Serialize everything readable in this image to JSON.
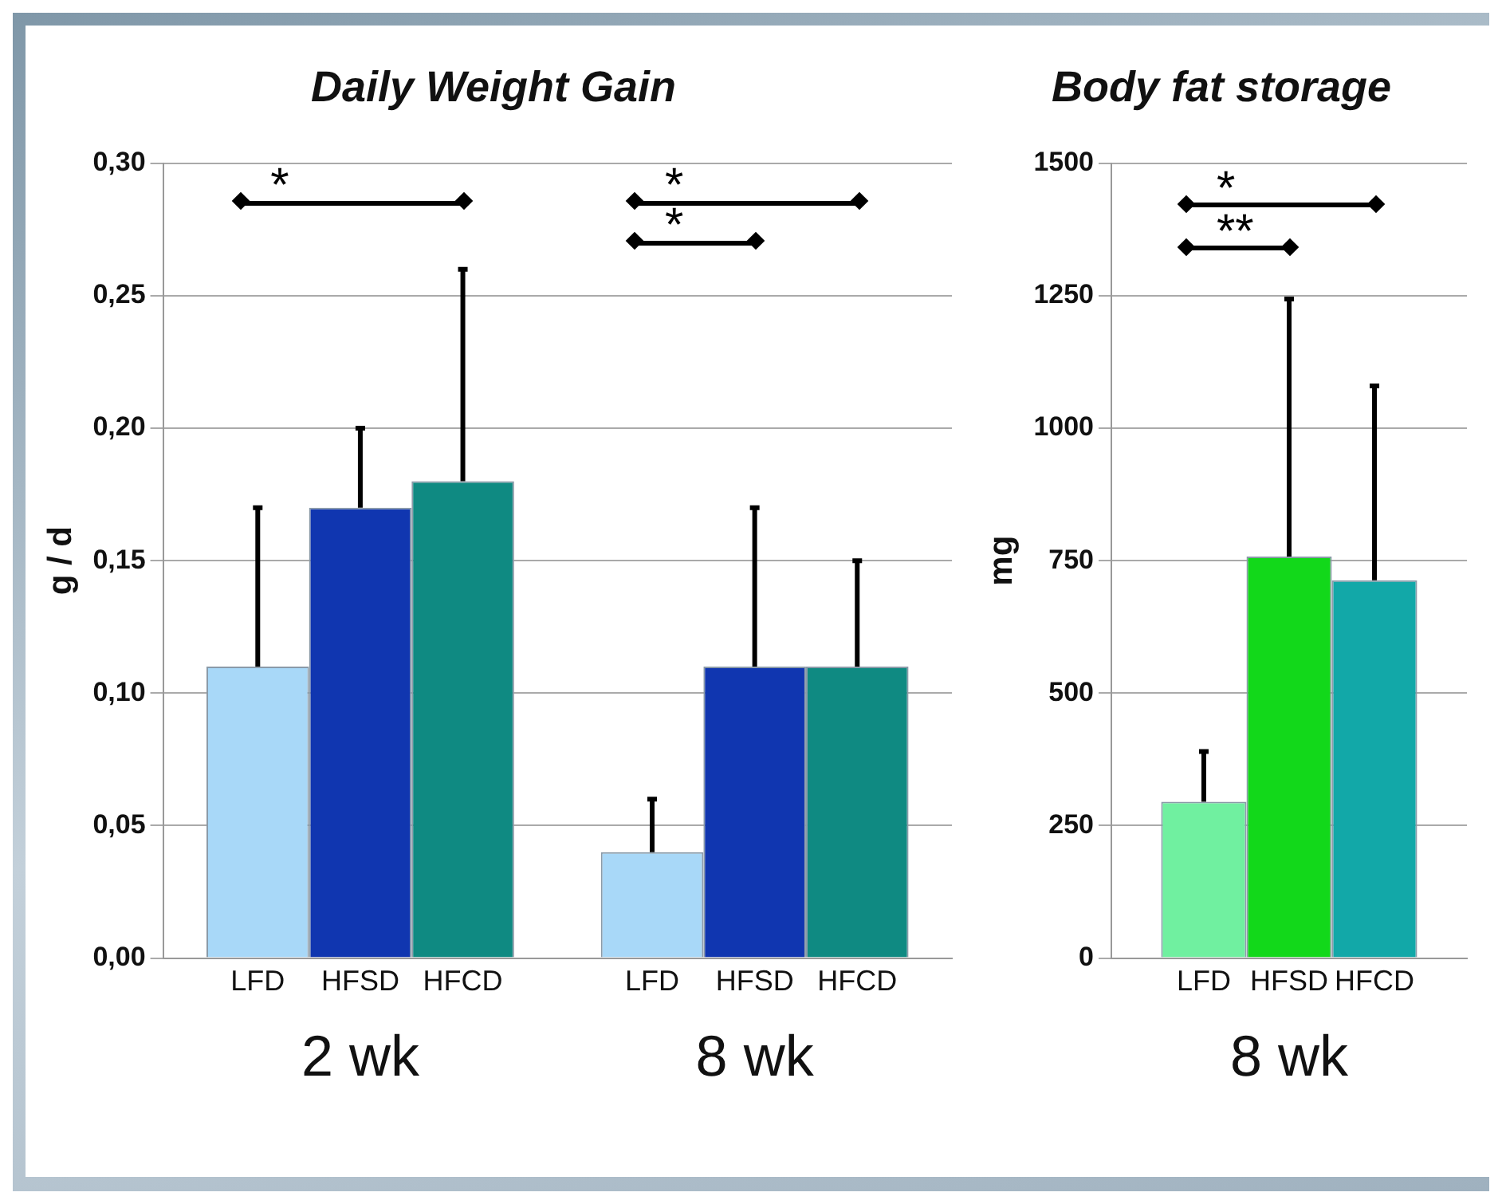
{
  "chart_data": [
    {
      "type": "bar",
      "title": "Daily Weight Gain",
      "ylabel": "g / d",
      "categories": [
        "2 wk",
        "8 wk"
      ],
      "series": [
        {
          "name": "LFD",
          "color": "#a8d8f8",
          "values": [
            0.11,
            0.04
          ],
          "errors": [
            [
              0.11,
              0.17
            ],
            [
              0.04,
              0.06
            ]
          ]
        },
        {
          "name": "HFSD",
          "color": "#1036b0",
          "values": [
            0.17,
            0.11
          ],
          "errors": [
            [
              0.17,
              0.2
            ],
            [
              0.11,
              0.17
            ]
          ]
        },
        {
          "name": "HFCD",
          "color": "#0f8a82",
          "values": [
            0.18,
            0.11
          ],
          "errors": [
            [
              0.18,
              0.26
            ],
            [
              0.11,
              0.15
            ]
          ]
        }
      ],
      "ylim": [
        0,
        0.3
      ],
      "yticks": [
        {
          "value": 0,
          "label": "0,00"
        },
        {
          "value": 0.05,
          "label": "0,05"
        },
        {
          "value": 0.1,
          "label": "0,10"
        },
        {
          "value": 0.15,
          "label": "0,15"
        },
        {
          "value": 0.2,
          "label": "0,20"
        },
        {
          "value": 0.25,
          "label": "0,25"
        },
        {
          "value": 0.3,
          "label": "0,30"
        }
      ],
      "annotations": [
        "*",
        "*",
        "*"
      ],
      "grid": "y",
      "legend": false
    },
    {
      "type": "bar",
      "title": "Body fat storage",
      "ylabel": "mg",
      "categories": [
        "8 wk"
      ],
      "series": [
        {
          "name": "LFD",
          "color": "#70f0a0",
          "values": [
            295
          ],
          "errors": [
            [
              295,
              390
            ]
          ]
        },
        {
          "name": "HFSD",
          "color": "#12d81a",
          "values": [
            758
          ],
          "errors": [
            [
              758,
              1244
            ]
          ]
        },
        {
          "name": "HFCD",
          "color": "#12a8a8",
          "values": [
            713
          ],
          "errors": [
            [
              713,
              1080
            ]
          ]
        }
      ],
      "ylim": [
        0,
        1500
      ],
      "yticks": [
        0,
        250,
        500,
        750,
        1000,
        1250,
        1500
      ],
      "annotations": [
        "*",
        "**"
      ],
      "grid": "y",
      "legend": false
    }
  ]
}
